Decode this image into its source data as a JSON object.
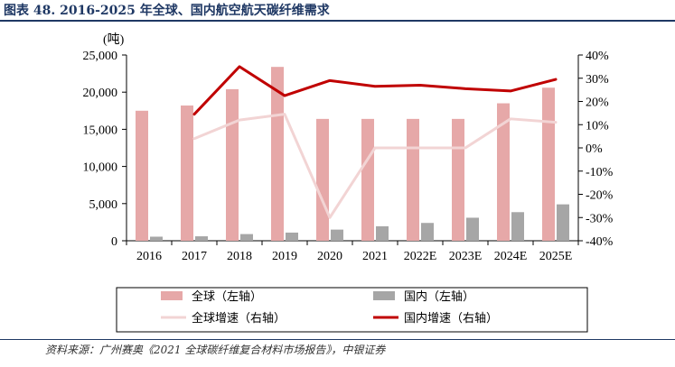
{
  "title": "图表 48. 2016-2025 年全球、国内航空航天碳纤维需求",
  "source": "资料来源：广州赛奥《2021 全球碳纤维复合材料市场报告》，中银证券",
  "colors": {
    "global_bar": "#e6a8a8",
    "domestic_bar": "#a6a6a6",
    "global_growth_line": "#f2d4d4",
    "domestic_growth_line": "#c00000"
  },
  "chart_data": {
    "type": "bar",
    "unit_label": "(吨)",
    "categories": [
      "2016",
      "2017",
      "2018",
      "2019",
      "2020",
      "2021",
      "2022E",
      "2023E",
      "2024E",
      "2025E"
    ],
    "y_left": {
      "min": 0,
      "max": 25000,
      "ticks": [
        "0",
        "5,000",
        "10,000",
        "15,000",
        "20,000",
        "25,000"
      ]
    },
    "y_right": {
      "min": -40,
      "max": 40,
      "ticks": [
        "-40%",
        "-30%",
        "-20%",
        "-10%",
        "0%",
        "10%",
        "20%",
        "30%",
        "40%"
      ]
    },
    "series": [
      {
        "name": "全球（左轴）",
        "kind": "bar",
        "axis": "left",
        "values": [
          17500,
          18200,
          20400,
          23400,
          16400,
          16400,
          16400,
          16400,
          18500,
          20600
        ]
      },
      {
        "name": "国内（左轴）",
        "kind": "bar",
        "axis": "left",
        "values": [
          550,
          600,
          900,
          1100,
          1500,
          1950,
          2400,
          3100,
          3850,
          4900
        ]
      },
      {
        "name": "全球增速（右轴）",
        "kind": "line",
        "axis": "right",
        "values": [
          null,
          4.0,
          12.0,
          14.5,
          -30.0,
          0.0,
          0.0,
          0.0,
          12.5,
          11.0
        ]
      },
      {
        "name": "国内增速（右轴）",
        "kind": "line",
        "axis": "right",
        "values": [
          null,
          14.5,
          35.0,
          22.5,
          29.0,
          26.5,
          27.0,
          25.5,
          24.5,
          29.5
        ]
      }
    ],
    "legend": {
      "position": "bottom"
    }
  }
}
